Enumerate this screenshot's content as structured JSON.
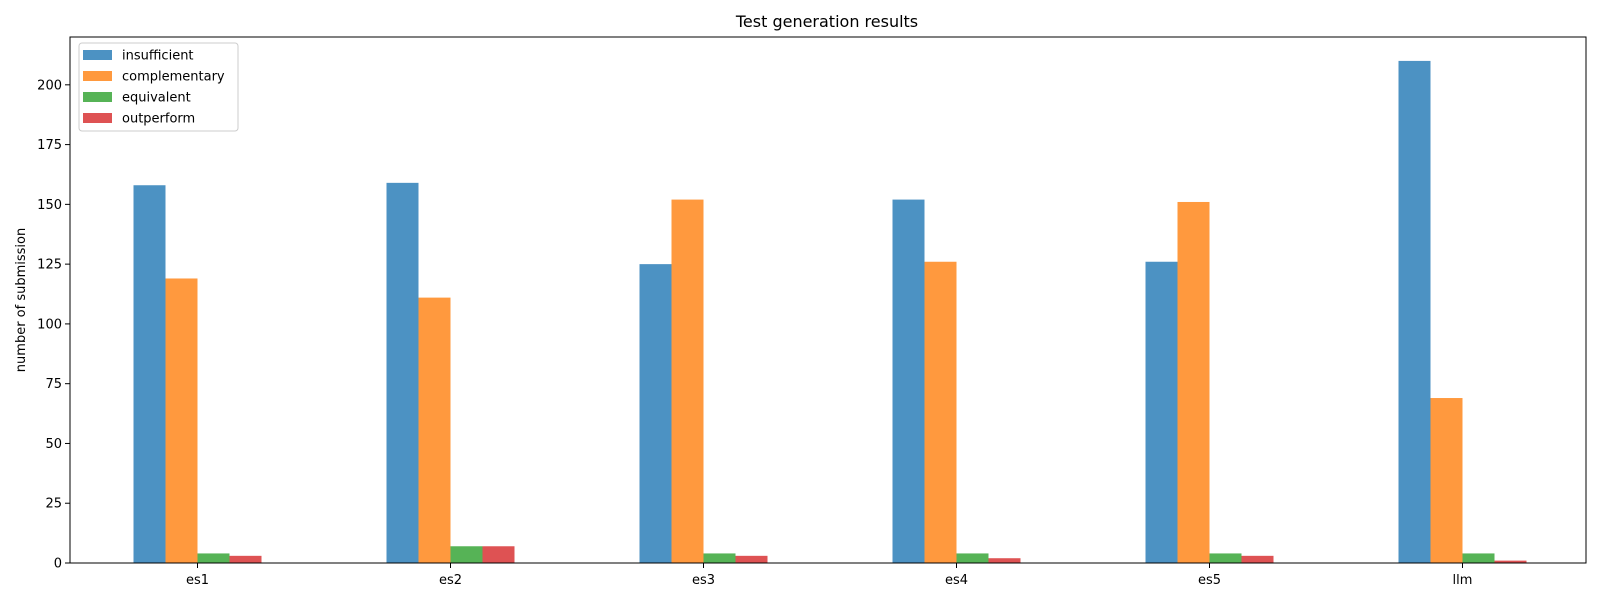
{
  "chart_data": {
    "type": "bar",
    "title": "Test generation results",
    "xlabel": "",
    "ylabel": "number of submission",
    "categories": [
      "es1",
      "es2",
      "es3",
      "es4",
      "es5",
      "llm"
    ],
    "series": [
      {
        "name": "insufficient",
        "color": "#1f77b4",
        "values": [
          158,
          159,
          125,
          152,
          126,
          210
        ]
      },
      {
        "name": "complementary",
        "color": "#ff7f0e",
        "values": [
          119,
          111,
          152,
          126,
          151,
          69
        ]
      },
      {
        "name": "equivalent",
        "color": "#2ca02c",
        "values": [
          4,
          7,
          4,
          4,
          4,
          4
        ]
      },
      {
        "name": "outperform",
        "color": "#d62728",
        "values": [
          3,
          7,
          3,
          2,
          3,
          1
        ]
      }
    ],
    "ylim": [
      0,
      220
    ],
    "yticks": [
      0,
      25,
      50,
      75,
      100,
      125,
      150,
      175,
      200
    ],
    "legend_position": "top-left",
    "grid": false
  }
}
